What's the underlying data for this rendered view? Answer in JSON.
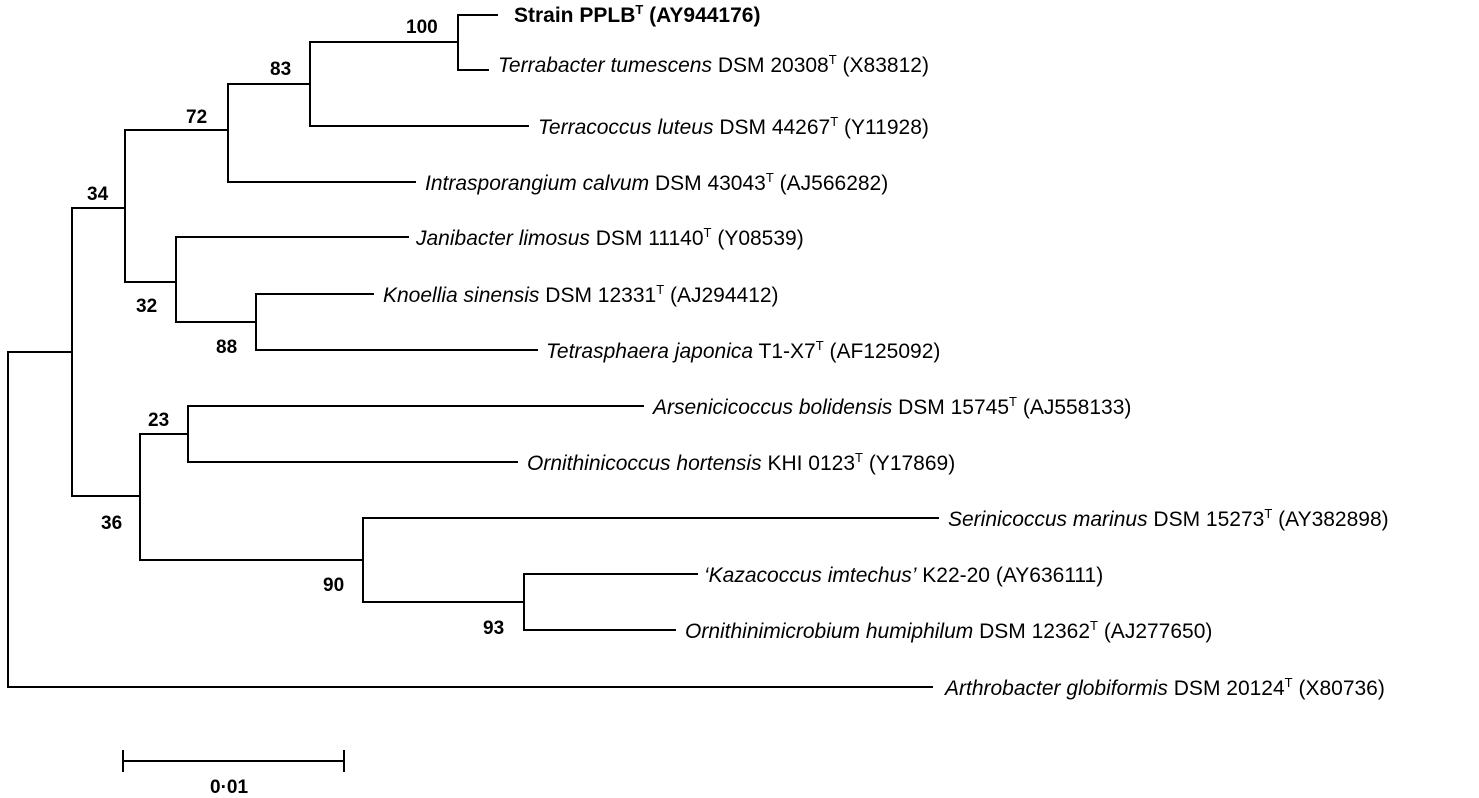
{
  "taxa": [
    {
      "name": "Strain PPLB",
      "sup": "T",
      "acc": "(AY944176)"
    },
    {
      "name": "Terrabacter tumescens",
      "strain": "DSM 20308",
      "sup": "T",
      "acc": "(X83812)"
    },
    {
      "name": "Terracoccus luteus",
      "strain": "DSM 44267",
      "sup": "T",
      "acc": "(Y11928)"
    },
    {
      "name": "Intrasporangium calvum",
      "strain": "DSM 43043",
      "sup": "T",
      "acc": "(AJ566282)"
    },
    {
      "name": "Janibacter limosus",
      "strain": "DSM 11140",
      "sup": "T",
      "acc": "(Y08539)"
    },
    {
      "name": "Knoellia sinensis",
      "strain": "DSM 12331",
      "sup": "T",
      "acc": "(AJ294412)"
    },
    {
      "name": "Tetrasphaera japonica",
      "strain": "T1-X7",
      "sup": "T",
      "acc": "(AF125092)"
    },
    {
      "name": "Arsenicicoccus bolidensis",
      "strain": "DSM 15745",
      "sup": "T",
      "acc": "(AJ558133)"
    },
    {
      "name": "Ornithinicoccus hortensis",
      "strain": "KHI 0123",
      "sup": "T",
      "acc": "(Y17869)"
    },
    {
      "name": "Serinicoccus marinus",
      "strain": "DSM 15273",
      "sup": "T",
      "acc": "(AY382898)"
    },
    {
      "name": "‘Kazacoccus imtechus’",
      "strain": "K22-20",
      "sup": "",
      "acc": "(AY636111)"
    },
    {
      "name": "Ornithinimicrobium humiphilum",
      "strain": "DSM 12362",
      "sup": "T",
      "acc": "(AJ277650)"
    },
    {
      "name": "Arthrobacter globiformis",
      "strain": "DSM 20124",
      "sup": "T",
      "acc": "(X80736)"
    }
  ],
  "bootstrap": [
    "100",
    "83",
    "72",
    "34",
    "32",
    "88",
    "23",
    "36",
    "90",
    "93"
  ],
  "scale_bar": {
    "value": 0.01,
    "label": "0·01"
  }
}
